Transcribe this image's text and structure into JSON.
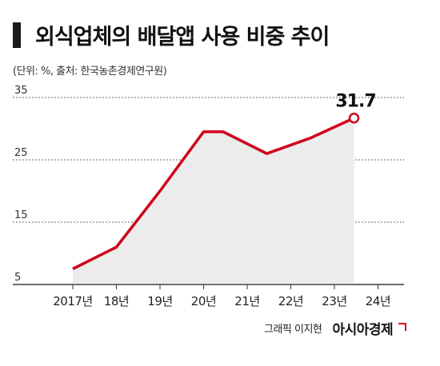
{
  "title": "외식업체의 배달앱 사용 비중 추이",
  "subtitle": "(단위: %, 출처: 한국농촌경제연구원)",
  "footer": {
    "credit": "그래픽 이지현",
    "brand": "아시아경제"
  },
  "colors": {
    "line": "#d0021b",
    "area": "#ececec",
    "grid": "#333333"
  },
  "chart_data": {
    "type": "area",
    "categories": [
      "2017년",
      "18년",
      "19년",
      "20년",
      "21년",
      "22년",
      "23년",
      "24년"
    ],
    "x": [
      0,
      1,
      2,
      3,
      3.45,
      4.45,
      5.45,
      6.45
    ],
    "y": [
      7.5,
      11,
      20,
      29.5,
      29.5,
      26,
      28.5,
      31.7
    ],
    "ylim": [
      5,
      35
    ],
    "yticks": [
      5,
      15,
      25,
      35
    ],
    "ytick_labels": [
      "5",
      "15",
      "25",
      "35"
    ],
    "annotation": {
      "text": "31.7",
      "index": 7
    },
    "grid": "horizontal-dotted",
    "legend": "none"
  }
}
